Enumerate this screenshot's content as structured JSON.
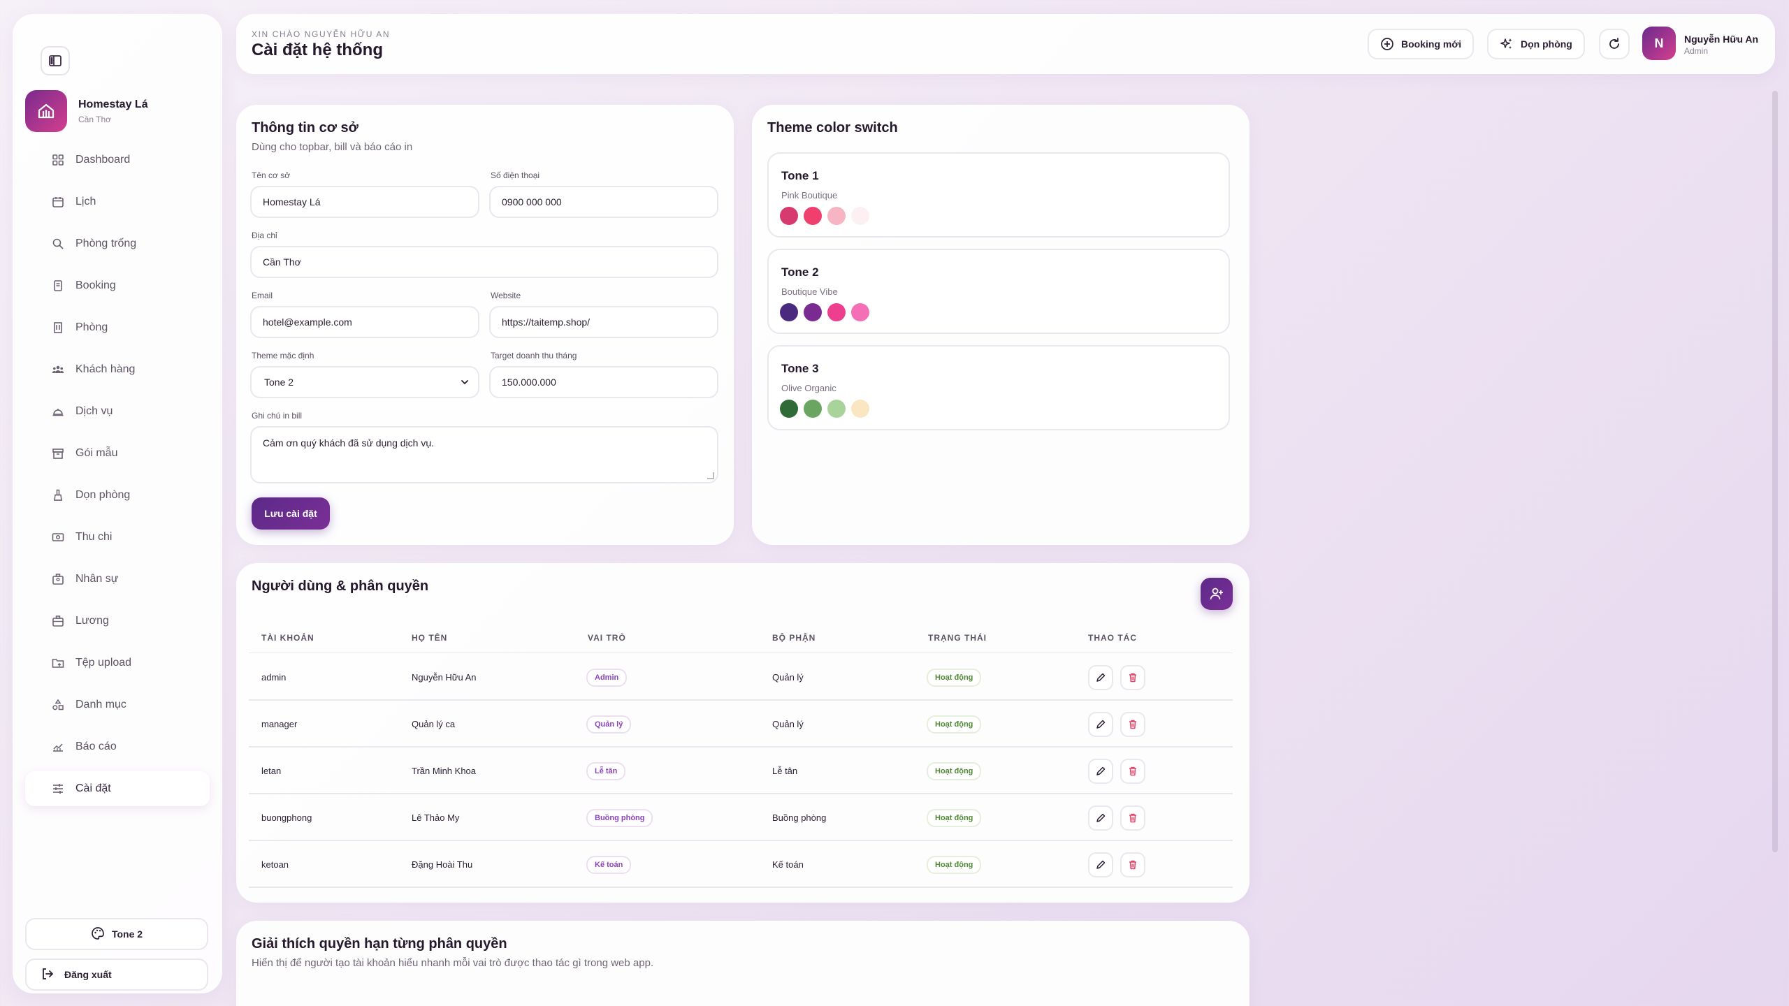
{
  "sidebar": {
    "brand_name": "Homestay Lá",
    "brand_location": "Cần Thơ",
    "items": [
      {
        "label": "Dashboard",
        "icon": "grid-icon"
      },
      {
        "label": "Lịch",
        "icon": "calendar-icon"
      },
      {
        "label": "Phòng trống",
        "icon": "search-icon"
      },
      {
        "label": "Booking",
        "icon": "booking-icon"
      },
      {
        "label": "Phòng",
        "icon": "building-icon"
      },
      {
        "label": "Khách hàng",
        "icon": "users-icon"
      },
      {
        "label": "Dịch vụ",
        "icon": "service-bell-icon"
      },
      {
        "label": "Gói mẫu",
        "icon": "package-icon"
      },
      {
        "label": "Dọn phòng",
        "icon": "cleaning-icon"
      },
      {
        "label": "Thu chi",
        "icon": "money-icon"
      },
      {
        "label": "Nhân sự",
        "icon": "staff-icon"
      },
      {
        "label": "Lương",
        "icon": "salary-icon"
      },
      {
        "label": "Tệp upload",
        "icon": "folder-upload-icon"
      },
      {
        "label": "Danh mục",
        "icon": "category-icon"
      },
      {
        "label": "Báo cáo",
        "icon": "report-chart-icon"
      },
      {
        "label": "Cài đặt",
        "icon": "sliders-icon",
        "active": true
      }
    ],
    "tone_label": "Tone 2",
    "logout_label": "Đăng xuất"
  },
  "header": {
    "greeting": "XIN CHÀO NGUYỄN HỮU AN",
    "title": "Cài đặt hệ thống",
    "new_booking_label": "Booking mới",
    "cleaning_label": "Dọn phòng",
    "user_initial": "N",
    "user_name": "Nguyễn Hữu An",
    "user_role": "Admin"
  },
  "settings": {
    "title": "Thông tin cơ sở",
    "subtitle": "Dùng cho topbar, bill và báo cáo in",
    "name_label": "Tên cơ sở",
    "name_value": "Homestay Lá",
    "phone_label": "Số điện thoại",
    "phone_value": "0900 000 000",
    "address_label": "Địa chỉ",
    "address_value": "Cần Thơ",
    "email_label": "Email",
    "email_value": "hotel@example.com",
    "website_label": "Website",
    "website_value": "https://taitemp.shop/",
    "theme_label": "Theme mặc định",
    "theme_value": "Tone 2",
    "target_label": "Target doanh thu tháng",
    "target_value": "150.000.000",
    "note_label": "Ghi chú in bill",
    "note_value": "Cảm ơn quý khách đã sử dụng dịch vụ.",
    "save_label": "Lưu cài đặt"
  },
  "theme": {
    "title": "Theme color switch",
    "tones": [
      {
        "name": "Tone 1",
        "desc": "Pink Boutique",
        "colors": [
          "#d63a6e",
          "#ef3f6d",
          "#f7b4c2",
          "#fdf0f3"
        ]
      },
      {
        "name": "Tone 2",
        "desc": "Boutique Vibe",
        "colors": [
          "#4a2a7e",
          "#7a2b92",
          "#ee3f8e",
          "#f46fb6"
        ]
      },
      {
        "name": "Tone 3",
        "desc": "Olive Organic",
        "colors": [
          "#2f6b36",
          "#6aa662",
          "#a8d49c",
          "#fbe6c4"
        ]
      }
    ]
  },
  "users": {
    "title": "Người dùng & phân quyền",
    "headers": [
      "TÀI KHOẢN",
      "HỌ TÊN",
      "VAI TRÒ",
      "BỘ PHẬN",
      "TRẠNG THÁI",
      "THAO TÁC"
    ],
    "rows": [
      {
        "account": "admin",
        "name": "Nguyễn Hữu An",
        "role": "Admin",
        "dept": "Quản lý",
        "status": "Hoạt động"
      },
      {
        "account": "manager",
        "name": "Quản lý ca",
        "role": "Quản lý",
        "dept": "Quản lý",
        "status": "Hoạt động"
      },
      {
        "account": "letan",
        "name": "Trần Minh Khoa",
        "role": "Lễ tân",
        "dept": "Lễ tân",
        "status": "Hoạt động"
      },
      {
        "account": "buongphong",
        "name": "Lê Thảo My",
        "role": "Buồng phòng",
        "dept": "Buồng phòng",
        "status": "Hoạt động"
      },
      {
        "account": "ketoan",
        "name": "Đặng Hoài Thu",
        "role": "Kế toán",
        "dept": "Kế toán",
        "status": "Hoạt động"
      }
    ]
  },
  "permissions": {
    "title": "Giải thích quyền hạn từng phân quyền",
    "subtitle": "Hiển thị để người tạo tài khoản hiểu nhanh mỗi vai trò được thao tác gì trong web app."
  }
}
